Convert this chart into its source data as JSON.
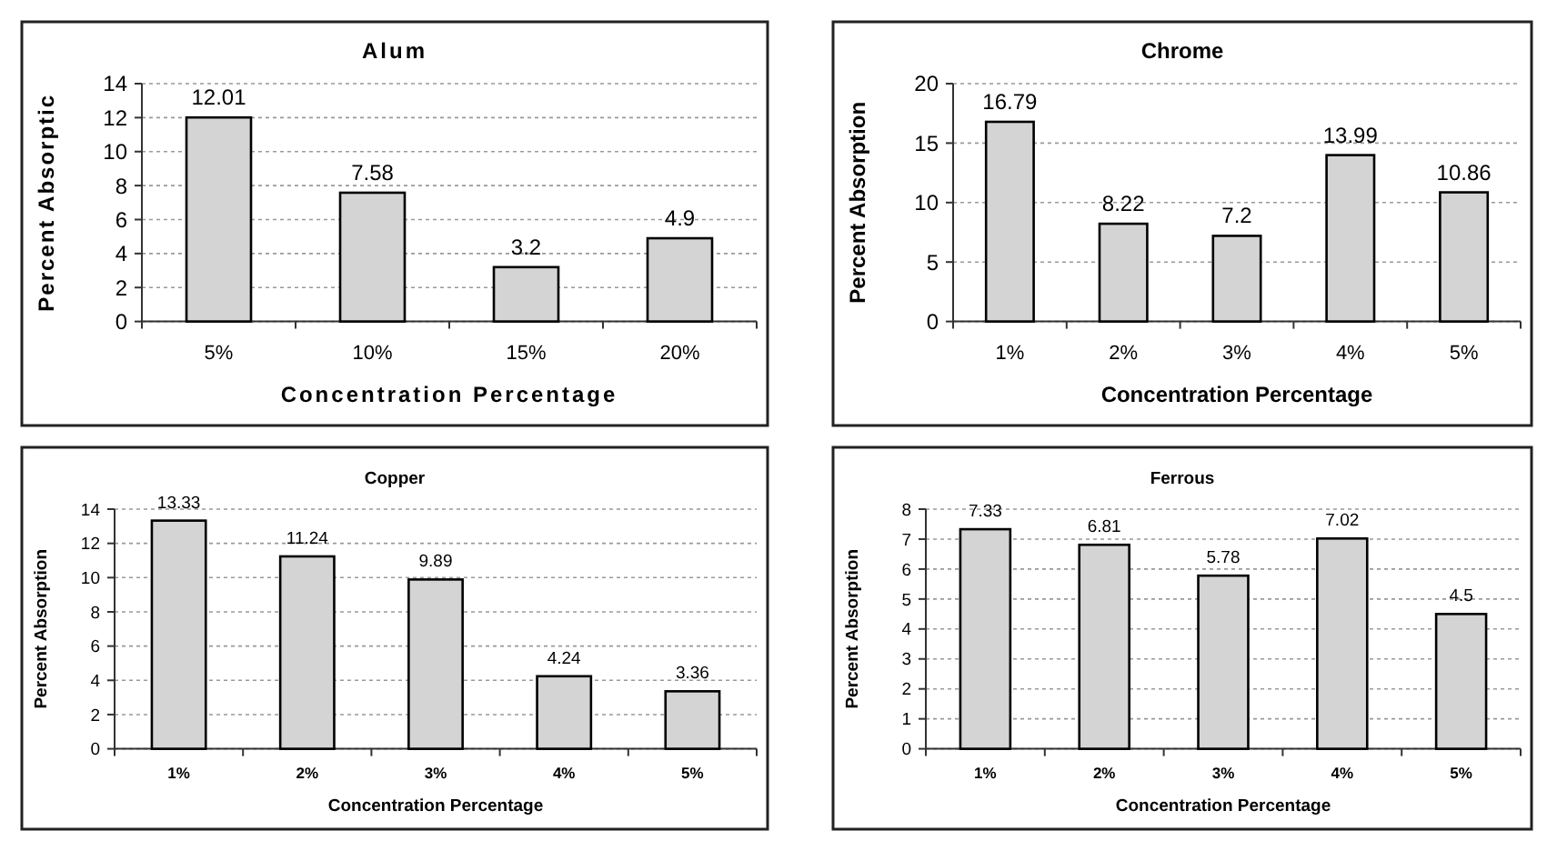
{
  "chart_data": [
    {
      "type": "bar",
      "title": "Alum",
      "xlabel": "Concentration Percentage",
      "ylabel": "Percent Absorptic",
      "categories": [
        "5%",
        "10%",
        "15%",
        "20%"
      ],
      "values": [
        12.01,
        7.58,
        3.2,
        4.9
      ],
      "color": "#d4d4d4",
      "ylim": [
        0,
        14
      ],
      "yticks": [
        0,
        2,
        4,
        6,
        8,
        10,
        12,
        14
      ],
      "grid": "y",
      "data_labels": true
    },
    {
      "type": "bar",
      "title": "Chrome",
      "xlabel": "Concentration Percentage",
      "ylabel": "Percent Absorption",
      "categories": [
        "1%",
        "2%",
        "3%",
        "4%",
        "5%"
      ],
      "values": [
        16.79,
        8.22,
        7.2,
        13.99,
        10.86
      ],
      "color": "#d4d4d4",
      "ylim": [
        0,
        20
      ],
      "yticks": [
        0,
        5,
        10,
        15,
        20
      ],
      "grid": "y",
      "data_labels": true
    },
    {
      "type": "bar",
      "title": "Copper",
      "xlabel": "Concentration Percentage",
      "ylabel": "Percent Absorption",
      "categories": [
        "1%",
        "2%",
        "3%",
        "4%",
        "5%"
      ],
      "values": [
        13.33,
        11.24,
        9.89,
        4.24,
        3.36
      ],
      "color": "#d4d4d4",
      "ylim": [
        0,
        14
      ],
      "yticks": [
        0,
        2,
        4,
        6,
        8,
        10,
        12,
        14
      ],
      "grid": "y",
      "data_labels": true
    },
    {
      "type": "bar",
      "title": "Ferrous",
      "xlabel": "Concentration Percentage",
      "ylabel": "Percent Absorption",
      "categories": [
        "1%",
        "2%",
        "3%",
        "4%",
        "5%"
      ],
      "values": [
        7.33,
        6.81,
        5.78,
        7.02,
        4.5
      ],
      "color": "#d4d4d4",
      "ylim": [
        0,
        8
      ],
      "yticks": [
        0,
        1,
        2,
        3,
        4,
        5,
        6,
        7,
        8
      ],
      "grid": "y",
      "data_labels": true
    }
  ]
}
